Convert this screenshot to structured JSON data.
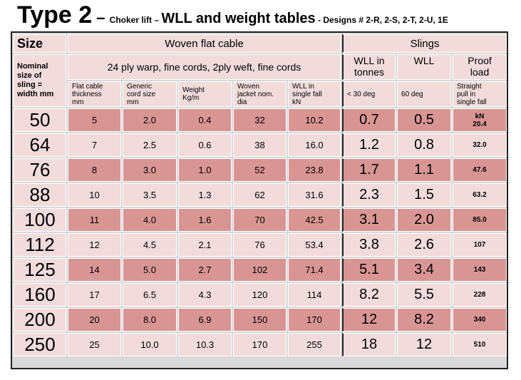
{
  "title": {
    "main": "Type 2",
    "dash": " – ",
    "choker": "Choker lift – ",
    "wll": "WLL and weight tables",
    "designs": " - Designs # 2-R, 2-S, 2-T, 2-U, 1E"
  },
  "header": {
    "size": "Size",
    "nominal": [
      "Nominal",
      "size of",
      "sling =",
      "width  mm"
    ],
    "woven_group": "Woven flat cable",
    "slings_group": "Slings",
    "ply": "24 ply warp, fine cords, 2ply weft, fine cords",
    "wll_tonnes": [
      "WLL in",
      "tonnes"
    ],
    "wll": "WLL",
    "proof": [
      "Proof",
      "load"
    ],
    "cols": [
      [
        "Flat cable",
        "thickness",
        "mm"
      ],
      [
        "Generic",
        "cord size",
        "mm"
      ],
      [
        "Weight",
        "Kg/m"
      ],
      [
        "Woven",
        "jacket nom.",
        "dia"
      ],
      [
        "WLL in",
        "single fall",
        "kN"
      ],
      [
        "< 30 deg"
      ],
      [
        "60 deg"
      ],
      [
        "Straight",
        "pull in",
        "single fall"
      ]
    ]
  },
  "rows": [
    {
      "size": "50",
      "thick": "5",
      "cord": "2.0",
      "weight": "0.4",
      "jacket": "32",
      "kn": "10.2",
      "w30": "0.7",
      "w60": "0.5",
      "proof": [
        "kN",
        "20.4"
      ]
    },
    {
      "size": "64",
      "thick": "7",
      "cord": "2.5",
      "weight": "0.6",
      "jacket": "38",
      "kn": "16.0",
      "w30": "1.2",
      "w60": "0.8",
      "proof": [
        "32.0"
      ]
    },
    {
      "size": "76",
      "thick": "8",
      "cord": "3.0",
      "weight": "1.0",
      "jacket": "52",
      "kn": "23.8",
      "w30": "1.7",
      "w60": "1.1",
      "proof": [
        "47.6"
      ]
    },
    {
      "size": "88",
      "thick": "10",
      "cord": "3.5",
      "weight": "1.3",
      "jacket": "62",
      "kn": "31.6",
      "w30": "2.3",
      "w60": "1.5",
      "proof": [
        "63.2"
      ]
    },
    {
      "size": "100",
      "thick": "11",
      "cord": "4.0",
      "weight": "1.6",
      "jacket": "70",
      "kn": "42.5",
      "w30": "3.1",
      "w60": "2.0",
      "proof": [
        "85.0"
      ]
    },
    {
      "size": "112",
      "thick": "12",
      "cord": "4.5",
      "weight": "2.1",
      "jacket": "76",
      "kn": "53.4",
      "w30": "3.8",
      "w60": "2.6",
      "proof": [
        "107"
      ]
    },
    {
      "size": "125",
      "thick": "14",
      "cord": "5.0",
      "weight": "2.7",
      "jacket": "102",
      "kn": "71.4",
      "w30": "5.1",
      "w60": "3.4",
      "proof": [
        "143"
      ]
    },
    {
      "size": "160",
      "thick": "17",
      "cord": "6.5",
      "weight": "4.3",
      "jacket": "120",
      "kn": "114",
      "w30": "8.2",
      "w60": "5.5",
      "proof": [
        "228"
      ]
    },
    {
      "size": "200",
      "thick": "20",
      "cord": "8.0",
      "weight": "6.9",
      "jacket": "150",
      "kn": "170",
      "w30": "12",
      "w60": "8.2",
      "proof": [
        "340"
      ]
    },
    {
      "size": "250",
      "thick": "25",
      "cord": "10.0",
      "weight": "10.3",
      "jacket": "170",
      "kn": "255",
      "w30": "18",
      "w60": "12",
      "proof": [
        "510"
      ]
    }
  ],
  "colors": {
    "dark_row": "#d99594",
    "light_row": "#f2dbdb",
    "border": "#222222"
  }
}
